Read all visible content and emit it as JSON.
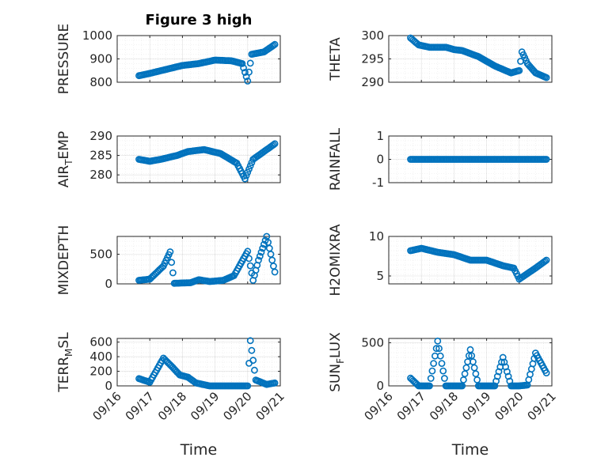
{
  "figure": {
    "title": "Figure 3 high",
    "xlabel": "Time",
    "x_ticks": [
      "09/16",
      "09/17",
      "09/18",
      "09/19",
      "09/20",
      "09/21"
    ],
    "marker_color": "#0072BD"
  },
  "chart_data": [
    {
      "type": "scatter",
      "ylabel": "PRESSURE",
      "ylim": [
        800,
        1000
      ],
      "y_ticks": [
        "800",
        "900",
        "1000"
      ],
      "grid": true,
      "x": [
        "09/16 16:00",
        "09/17 00:00",
        "09/17 12:00",
        "09/18 00:00",
        "09/18 12:00",
        "09/19 00:00",
        "09/19 12:00",
        "09/19 20:00",
        "09/20 00:00",
        "09/20 03:00",
        "09/20 12:00",
        "09/20 20:00"
      ],
      "y": [
        828,
        838,
        855,
        872,
        880,
        895,
        892,
        880,
        805,
        920,
        930,
        962
      ]
    },
    {
      "type": "scatter",
      "ylabel": "THETA",
      "ylim": [
        290,
        300
      ],
      "y_ticks": [
        "290",
        "295",
        "300"
      ],
      "grid": true,
      "x": [
        "09/16 16:00",
        "09/16 22:00",
        "09/17 06:00",
        "09/17 18:00",
        "09/18 00:00",
        "09/18 06:00",
        "09/18 18:00",
        "09/19 06:00",
        "09/19 18:00",
        "09/20 00:00",
        "09/20 02:00",
        "09/20 06:00",
        "09/20 12:00",
        "09/20 20:00"
      ],
      "y": [
        299.5,
        298,
        297.5,
        297.5,
        297,
        296.8,
        295.5,
        293.5,
        292,
        292.5,
        296.5,
        294,
        292,
        291
      ]
    },
    {
      "type": "scatter",
      "ylabel": "AIR_TEMP",
      "ylim": [
        278,
        290
      ],
      "y_ticks": [
        "280",
        "285",
        "290"
      ],
      "grid": true,
      "x": [
        "09/16 16:00",
        "09/17 00:00",
        "09/17 08:00",
        "09/17 20:00",
        "09/18 04:00",
        "09/18 16:00",
        "09/19 04:00",
        "09/19 16:00",
        "09/19 22:00",
        "09/20 04:00",
        "09/20 12:00",
        "09/20 20:00"
      ],
      "y": [
        284,
        283.5,
        284,
        285,
        286,
        286.5,
        285.5,
        283,
        279,
        284,
        286,
        288
      ]
    },
    {
      "type": "scatter",
      "ylabel": "RAINFALL",
      "ylim": [
        -1,
        1
      ],
      "y_ticks": [
        "-1",
        "0",
        "1"
      ],
      "grid": true,
      "x": [
        "09/16 16:00",
        "09/20 20:00"
      ],
      "y": [
        0,
        0
      ]
    },
    {
      "type": "scatter",
      "ylabel": "MIXDEPTH",
      "ylim": [
        0,
        800
      ],
      "y_ticks": [
        "0",
        "500"
      ],
      "grid": true,
      "x": [
        "09/16 16:00",
        "09/17 00:00",
        "09/17 10:00",
        "09/17 15:00",
        "09/17 18:00",
        "09/18 06:00",
        "09/18 12:00",
        "09/18 20:00",
        "09/19 06:00",
        "09/19 14:00",
        "09/20 00:00",
        "09/20 04:00",
        "09/20 08:00",
        "09/20 14:00",
        "09/20 20:00"
      ],
      "y": [
        60,
        80,
        300,
        540,
        10,
        20,
        70,
        40,
        60,
        140,
        550,
        60,
        400,
        800,
        200
      ]
    },
    {
      "type": "scatter",
      "ylabel": "H2OMIXRA",
      "ylim": [
        4,
        10
      ],
      "y_ticks": [
        "5",
        "10"
      ],
      "grid": true,
      "x": [
        "09/16 16:00",
        "09/17 00:00",
        "09/17 12:00",
        "09/18 00:00",
        "09/18 12:00",
        "09/19 00:00",
        "09/19 12:00",
        "09/19 20:00",
        "09/20 00:00",
        "09/20 12:00",
        "09/20 20:00"
      ],
      "y": [
        8.2,
        8.5,
        8,
        7.7,
        7,
        7,
        6.3,
        6,
        4.6,
        6,
        7
      ]
    },
    {
      "type": "scatter",
      "ylabel": "TERR_MSL",
      "ylim": [
        0,
        650
      ],
      "y_ticks": [
        "0",
        "200",
        "400",
        "600"
      ],
      "grid": true,
      "x": [
        "09/16 16:00",
        "09/17 00:00",
        "09/17 10:00",
        "09/17 16:00",
        "09/17 22:00",
        "09/18 04:00",
        "09/18 10:00",
        "09/18 20:00",
        "09/19 12:00",
        "09/20 00:00",
        "09/20 02:00",
        "09/20 06:00",
        "09/20 14:00",
        "09/20 20:00"
      ],
      "y": [
        100,
        50,
        380,
        270,
        150,
        120,
        40,
        0,
        0,
        0,
        620,
        80,
        20,
        40
      ]
    },
    {
      "type": "scatter",
      "ylabel": "SUN_FLUX",
      "ylim": [
        0,
        550
      ],
      "y_ticks": [
        "0",
        "500"
      ],
      "grid": true,
      "x": [
        "09/16 16:00",
        "09/16 22:00",
        "09/17 06:00",
        "09/17 12:00",
        "09/17 18:00",
        "09/18 00:00",
        "09/18 06:00",
        "09/18 12:00",
        "09/18 18:00",
        "09/19 00:00",
        "09/19 06:00",
        "09/19 12:00",
        "09/19 18:00",
        "09/20 00:00",
        "09/20 06:00",
        "09/20 12:00",
        "09/20 20:00"
      ],
      "y": [
        90,
        0,
        0,
        520,
        0,
        0,
        0,
        420,
        0,
        0,
        0,
        330,
        0,
        0,
        10,
        380,
        150
      ]
    }
  ]
}
